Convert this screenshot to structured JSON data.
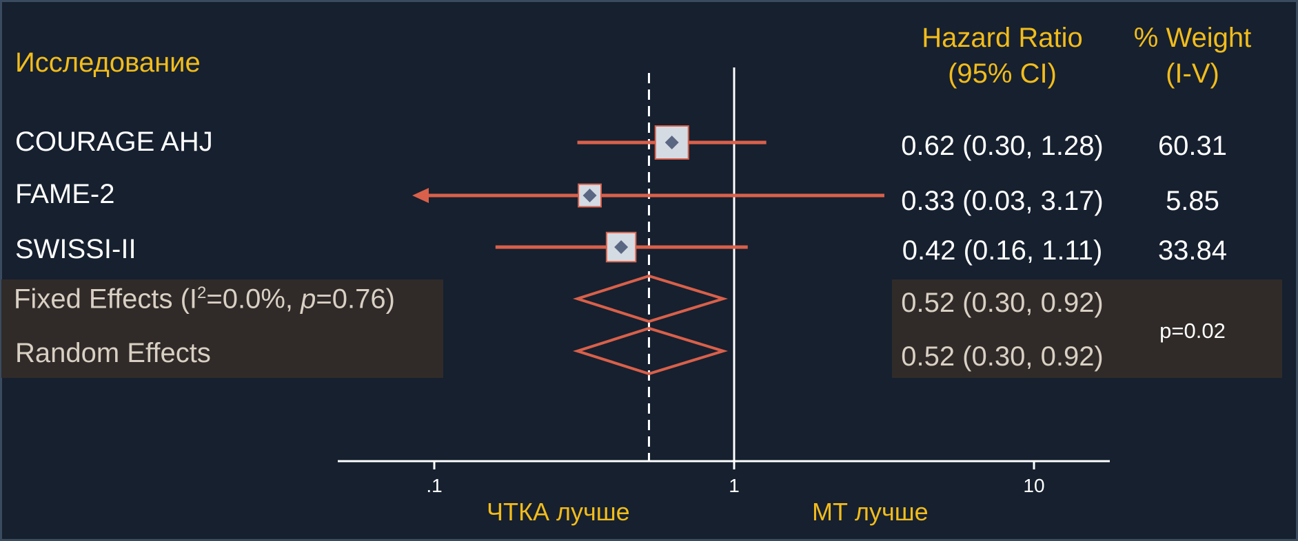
{
  "header": {
    "study": "Исследование",
    "hr_line1": "Hazard Ratio",
    "hr_line2": "(95% CI)",
    "weight_line1": "% Weight",
    "weight_line2": "(I-V)"
  },
  "rows": [
    {
      "label": "COURAGE AHJ",
      "ci_text": "0.62 (0.30, 1.28)",
      "weight": "60.31"
    },
    {
      "label": "FAME-2",
      "ci_text": "0.33 (0.03, 3.17)",
      "weight": "5.85"
    },
    {
      "label": "SWISSI-II",
      "ci_text": "0.42 (0.16, 1.11)",
      "weight": "33.84"
    }
  ],
  "pooled": {
    "fixed_label_pre": "Fixed Effects (I",
    "fixed_sup": "2",
    "fixed_label_mid": "=0.0%, ",
    "fixed_label_p": "p",
    "fixed_label_post": "=0.76)",
    "fixed_ci": "0.52 (0.30, 0.92)",
    "random_label": "Random Effects",
    "random_ci": "0.52 (0.30, 0.92)",
    "p_value": "p=0.02"
  },
  "axis": {
    "tick_labels": [
      ".1",
      "1",
      "10"
    ],
    "left_label": "ЧТКА лучше",
    "right_label": "МТ  лучше"
  },
  "colors": {
    "accent": "#f2bc1b",
    "ci_line": "#d9604a",
    "marker_box": "#d4dbe3",
    "marker_point": "#5a6783",
    "background": "#16202f",
    "pooled_band": "#302b29"
  },
  "chart_data": {
    "type": "forest",
    "scale": "log",
    "xlim": [
      0.07,
      15
    ],
    "xticks": [
      0.1,
      1,
      10
    ],
    "null_line": 1,
    "pooled_line": 0.52,
    "studies": [
      {
        "name": "COURAGE AHJ",
        "hr": 0.62,
        "lo": 0.3,
        "hi": 1.28,
        "weight": 60.31
      },
      {
        "name": "FAME-2",
        "hr": 0.33,
        "lo": 0.03,
        "hi": 3.17,
        "weight": 5.85,
        "lo_truncated": true
      },
      {
        "name": "SWISSI-II",
        "hr": 0.42,
        "lo": 0.16,
        "hi": 1.11,
        "weight": 33.84
      }
    ],
    "pooled": [
      {
        "name": "Fixed Effects",
        "hr": 0.52,
        "lo": 0.3,
        "hi": 0.92,
        "i2": "0.0%",
        "p_het": 0.76
      },
      {
        "name": "Random Effects",
        "hr": 0.52,
        "lo": 0.3,
        "hi": 0.92
      }
    ],
    "overall_p": 0.02
  }
}
